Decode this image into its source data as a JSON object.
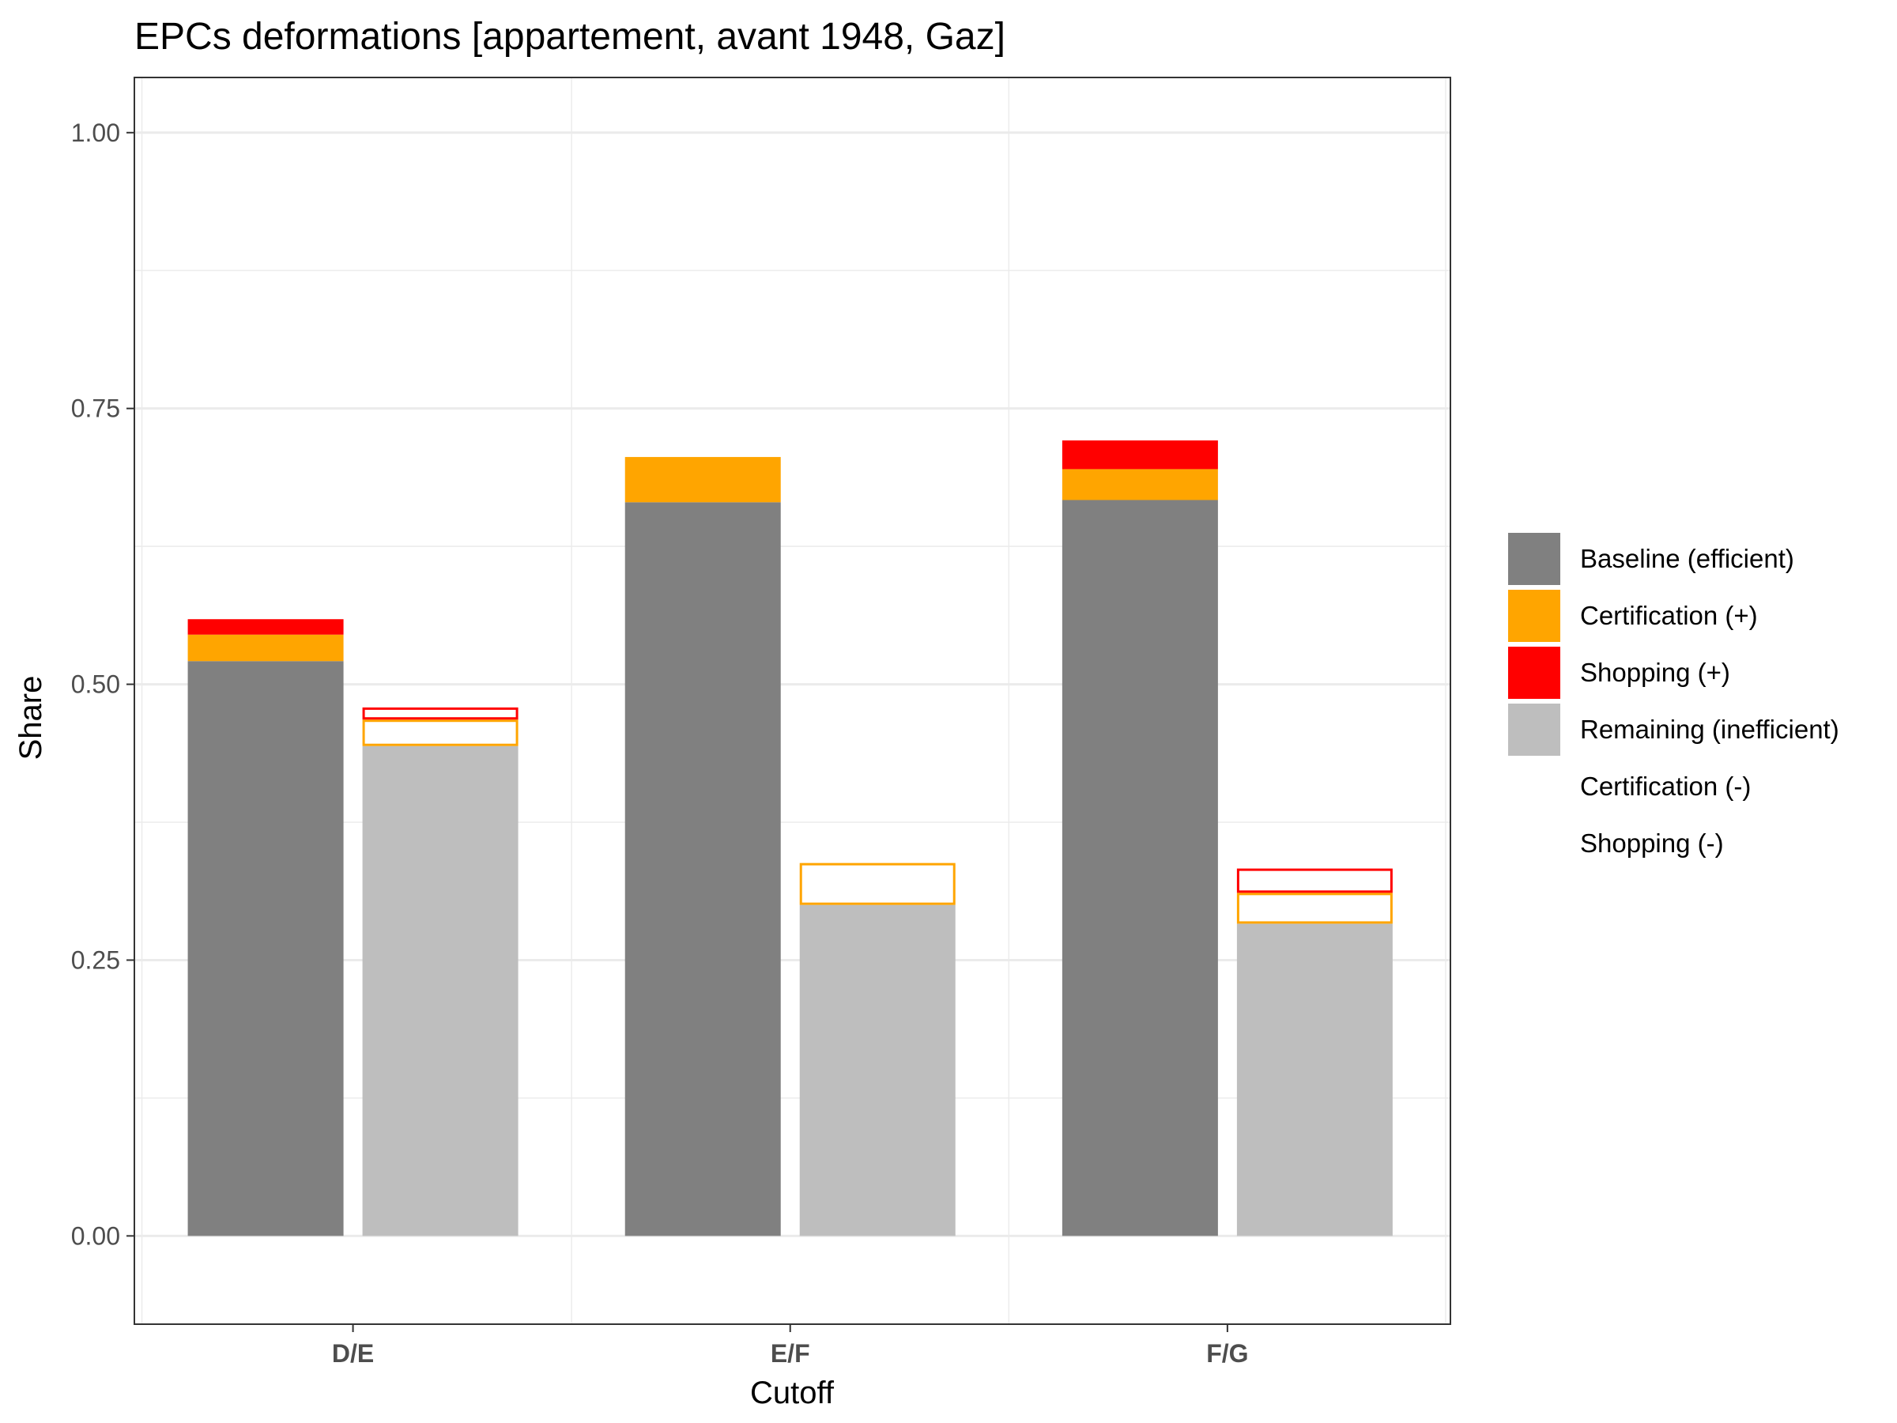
{
  "chart_data": {
    "type": "bar",
    "title": "EPCs deformations [appartement, avant 1948, Gaz]",
    "xlabel": "Cutoff",
    "ylabel": "Share",
    "ylim": [
      -0.08,
      1.05
    ],
    "yticks": [
      "0.00",
      "0.25",
      "0.50",
      "0.75",
      "1.00"
    ],
    "ytick_values": [
      0,
      0.25,
      0.5,
      0.75,
      1.0
    ],
    "minor_ytick_values": [
      0.125,
      0.375,
      0.625,
      0.875
    ],
    "grid": true,
    "legend_position": "right",
    "categories": [
      "D/E",
      "E/F",
      "F/G"
    ],
    "left_bars": [
      {
        "baseline": 0.521,
        "certification_plus": 0.024,
        "shopping_plus": 0.014
      },
      {
        "baseline": 0.665,
        "certification_plus": 0.041,
        "shopping_plus": 0.0
      },
      {
        "baseline": 0.667,
        "certification_plus": 0.028,
        "shopping_plus": 0.026
      }
    ],
    "right_bars": [
      {
        "remaining": 0.444,
        "certification_minus": 0.024,
        "shopping_minus": 0.011
      },
      {
        "remaining": 0.3,
        "certification_minus": 0.038,
        "shopping_minus": 0.0
      },
      {
        "remaining": 0.283,
        "certification_minus": 0.028,
        "shopping_minus": 0.022
      }
    ],
    "legend": [
      {
        "label": "Baseline (efficient)",
        "color": "#808080",
        "style": "filled"
      },
      {
        "label": "Certification (+)",
        "color": "#FFA500",
        "style": "filled"
      },
      {
        "label": "Shopping (+)",
        "color": "#FF0000",
        "style": "filled"
      },
      {
        "label": "Remaining (inefficient)",
        "color": "#BEBEBE",
        "style": "filled"
      },
      {
        "label": "Certification (-)",
        "color": "#FFA500",
        "style": "outline"
      },
      {
        "label": "Shopping (-)",
        "color": "#FF0000",
        "style": "outline"
      }
    ]
  }
}
